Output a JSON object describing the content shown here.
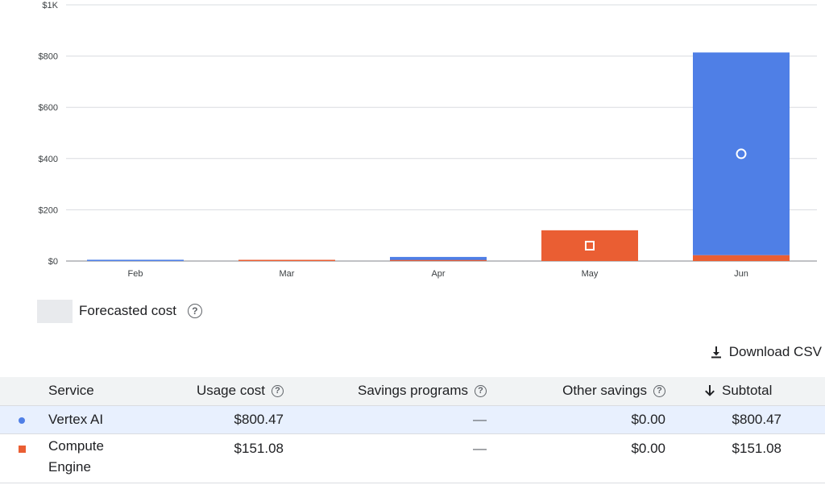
{
  "chart_data": {
    "type": "bar",
    "stacked": true,
    "categories": [
      "Feb",
      "Mar",
      "Apr",
      "May",
      "Jun"
    ],
    "series": [
      {
        "name": "Vertex AI",
        "color": "#4f7fe6",
        "marker": "circle",
        "values": [
          5,
          0,
          12,
          0,
          791
        ]
      },
      {
        "name": "Compute Engine",
        "color": "#ea5e33",
        "marker": "square",
        "values": [
          0,
          4,
          4,
          120,
          23
        ]
      }
    ],
    "ylim": [
      0,
      1000
    ],
    "yticks": [
      0,
      200,
      400,
      600,
      800,
      1000
    ],
    "ytick_labels": [
      "$0",
      "$200",
      "$400",
      "$600",
      "$800",
      "$1K"
    ],
    "grid": true,
    "point_markers": [
      {
        "category": "May",
        "series": "Compute Engine"
      },
      {
        "category": "Jun",
        "series": "Vertex AI"
      }
    ]
  },
  "legend": {
    "label": "Forecasted cost",
    "swatch_color": "#e8eaed"
  },
  "download": {
    "label": "Download CSV",
    "icon": "download-icon"
  },
  "table": {
    "headers": {
      "service": "Service",
      "usage_cost": "Usage cost",
      "savings_programs": "Savings programs",
      "other_savings": "Other savings",
      "subtotal": "Subtotal"
    },
    "rows": [
      {
        "marker": "circle",
        "color": "#4f7fe6",
        "service": "Vertex AI",
        "usage_cost": "$800.47",
        "savings_programs": "—",
        "other_savings": "$0.00",
        "subtotal": "$800.47"
      },
      {
        "marker": "square",
        "color": "#ea5e33",
        "service_line1": "Compute",
        "service_line2": "Engine",
        "usage_cost": "$151.08",
        "savings_programs": "—",
        "other_savings": "$0.00",
        "subtotal": "$151.08"
      }
    ]
  }
}
